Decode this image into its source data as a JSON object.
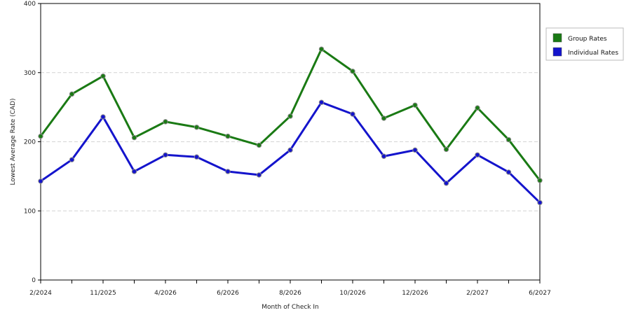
{
  "chart_data": {
    "type": "line",
    "title": "",
    "xlabel": "Month of Check In",
    "ylabel": "Lowest Average Rate (CAD)",
    "ylim": [
      0,
      400
    ],
    "yticks": [
      0,
      100,
      200,
      300,
      400
    ],
    "grid": true,
    "legend_position": "right",
    "x_tick_labels": [
      "2/2024",
      "11/2025",
      "4/2026",
      "6/2026",
      "8/2026",
      "10/2026",
      "12/2026",
      "2/2027",
      "6/2027"
    ],
    "series": [
      {
        "name": "Group Rates",
        "color": "#1a7a14",
        "values": [
          208,
          269,
          295,
          206,
          229,
          221,
          208,
          195,
          237,
          334,
          302,
          234,
          253,
          189,
          249,
          203,
          144
        ]
      },
      {
        "name": "Individual Rates",
        "color": "#1414cc",
        "values": [
          143,
          174,
          236,
          157,
          181,
          178,
          157,
          152,
          188,
          257,
          240,
          179,
          188,
          140,
          181,
          156,
          112
        ]
      }
    ]
  }
}
